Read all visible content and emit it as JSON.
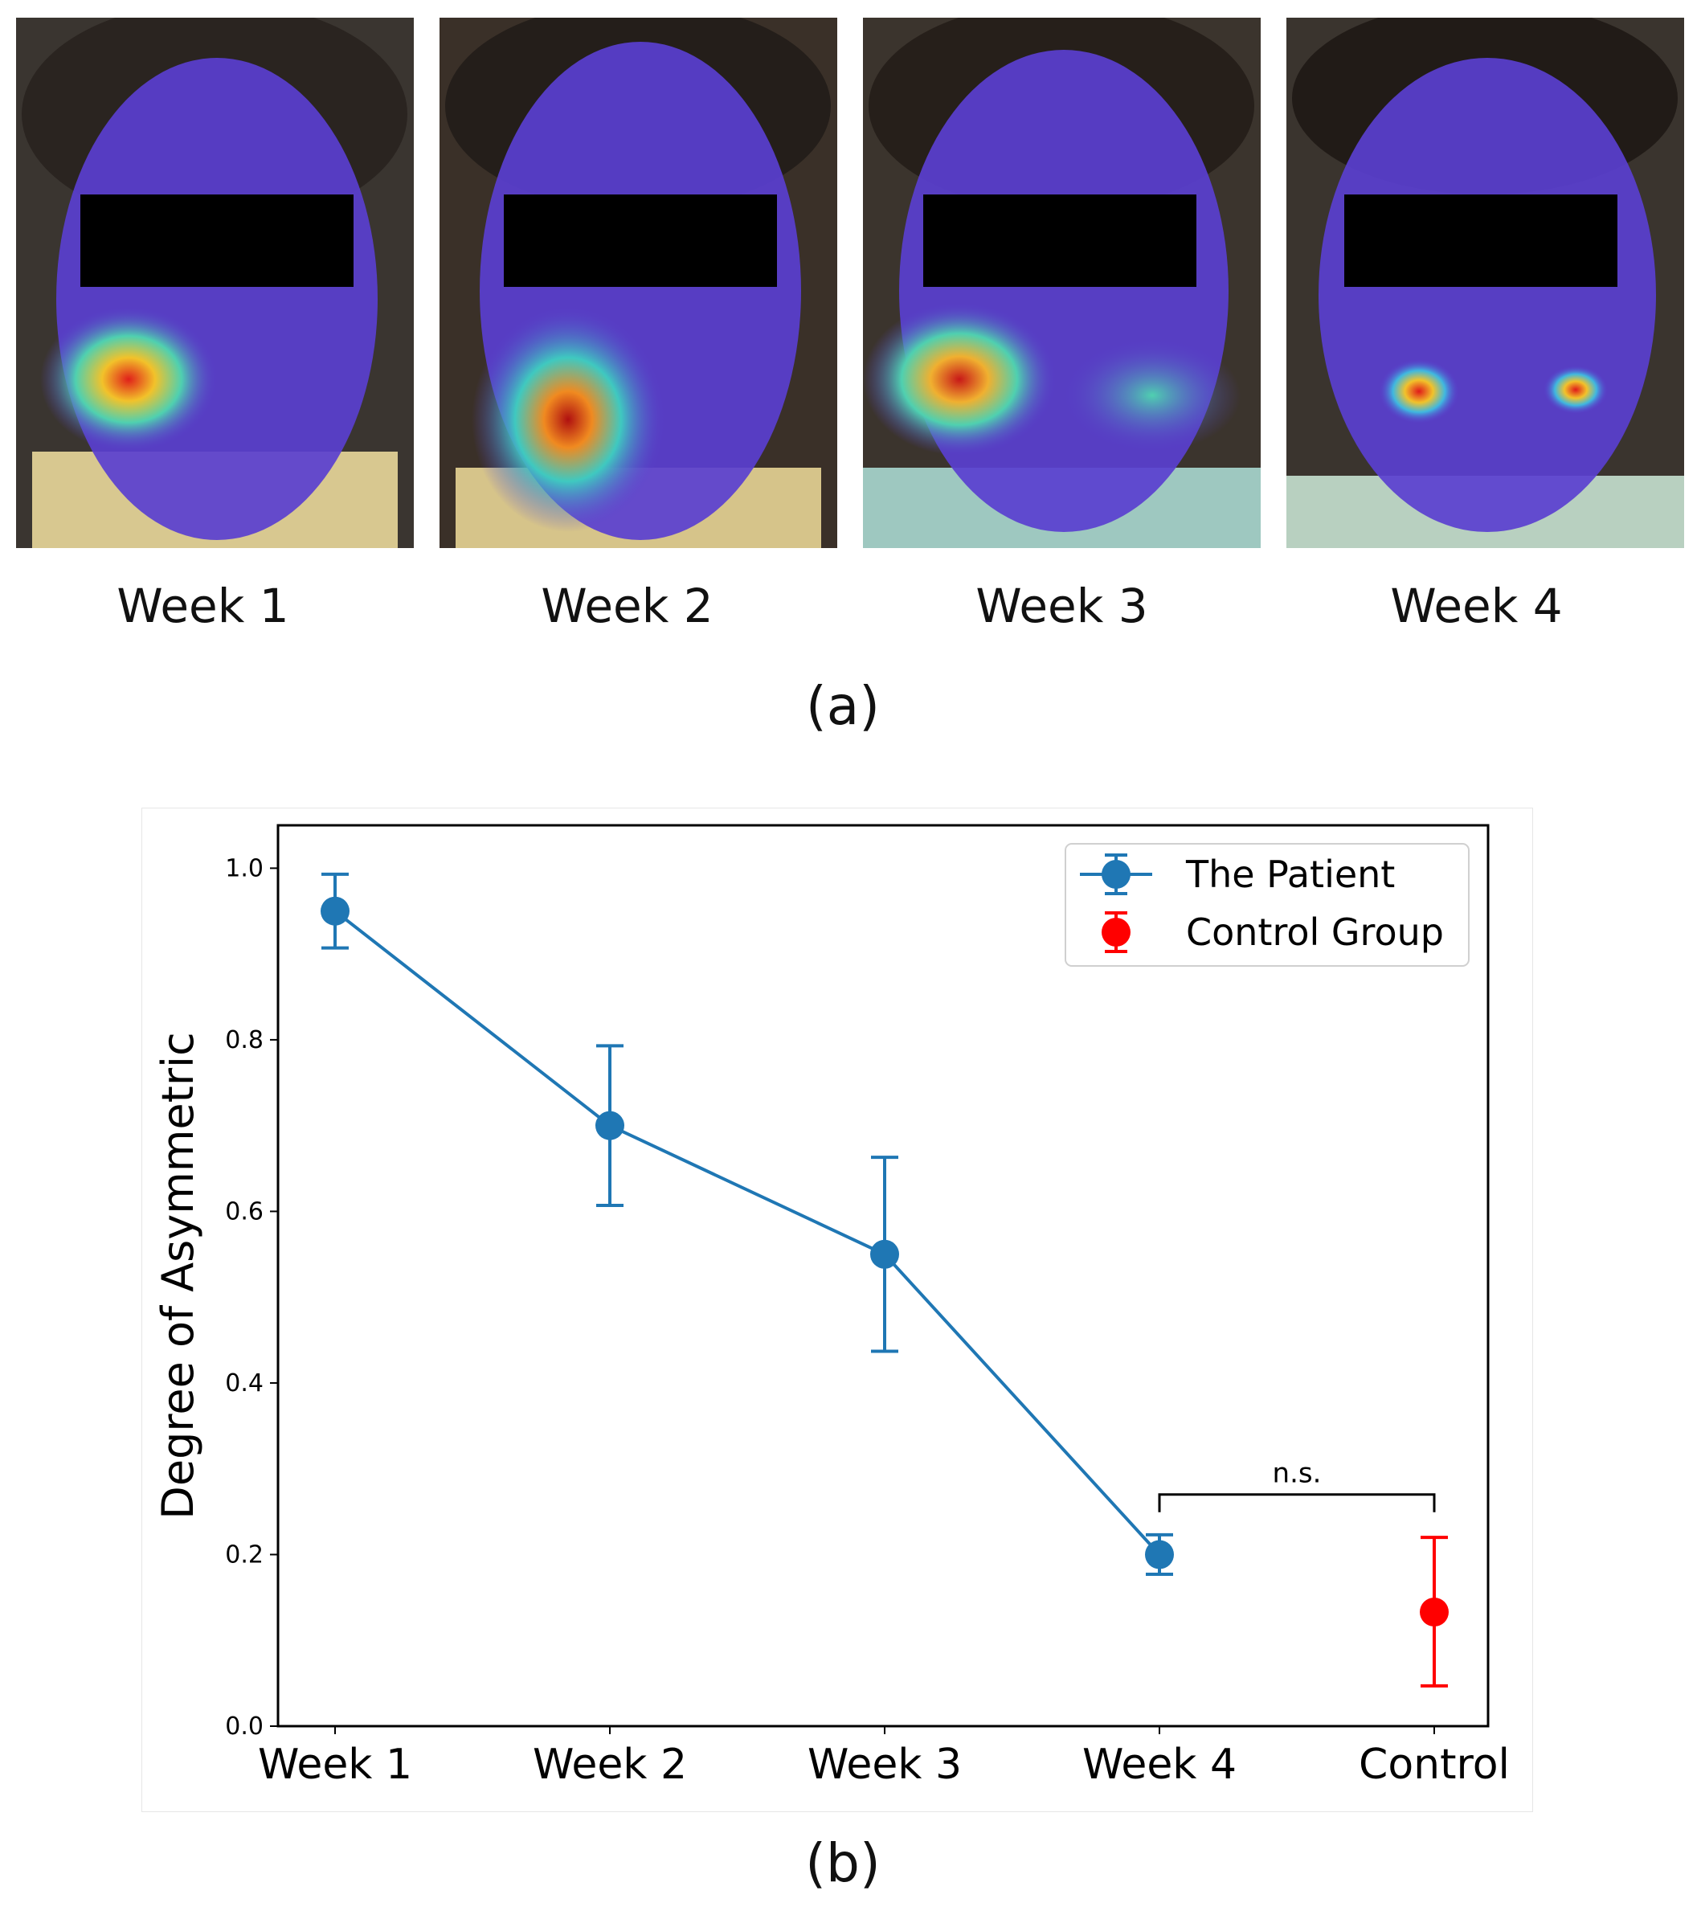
{
  "panel_a": {
    "caption": "(a)",
    "images": [
      {
        "label": "Week 1",
        "hotspot": "left-cheek"
      },
      {
        "label": "Week 2",
        "hotspot": "left-nose-cheek"
      },
      {
        "label": "Week 3",
        "hotspot": "left-cheek-and-mouth"
      },
      {
        "label": "Week 4",
        "hotspot": "mouth-corners"
      }
    ]
  },
  "panel_b": {
    "caption": "(b)"
  },
  "colors": {
    "patient": "#1f77b4",
    "control": "#ff0000",
    "heat_base": "#5a3fd0"
  },
  "chart_data": {
    "type": "line",
    "title": "",
    "xlabel": "",
    "ylabel": "Degree of Asymmetric",
    "categories": [
      "Week 1",
      "Week 2",
      "Week 3",
      "Week 4",
      "Control"
    ],
    "ylim": [
      0.0,
      1.05
    ],
    "yticks": [
      "0.0",
      "0.2",
      "0.4",
      "0.6",
      "0.8",
      "1.0"
    ],
    "legend_position": "top-right",
    "series": [
      {
        "name": "The Patient",
        "x": [
          "Week 1",
          "Week 2",
          "Week 3",
          "Week 4"
        ],
        "values": [
          0.95,
          0.7,
          0.55,
          0.2
        ],
        "err_low": [
          0.907,
          0.607,
          0.437,
          0.177
        ],
        "err_high": [
          0.993,
          0.793,
          0.663,
          0.223
        ],
        "color": "#1f77b4",
        "line": true
      },
      {
        "name": "Control Group",
        "x": [
          "Control"
        ],
        "values": [
          0.133
        ],
        "err_low": [
          0.047
        ],
        "err_high": [
          0.22
        ],
        "color": "#ff0000",
        "line": false
      }
    ],
    "annotation": {
      "text": "n.s.",
      "between": [
        "Week 4",
        "Control"
      ],
      "y": 0.27
    }
  }
}
